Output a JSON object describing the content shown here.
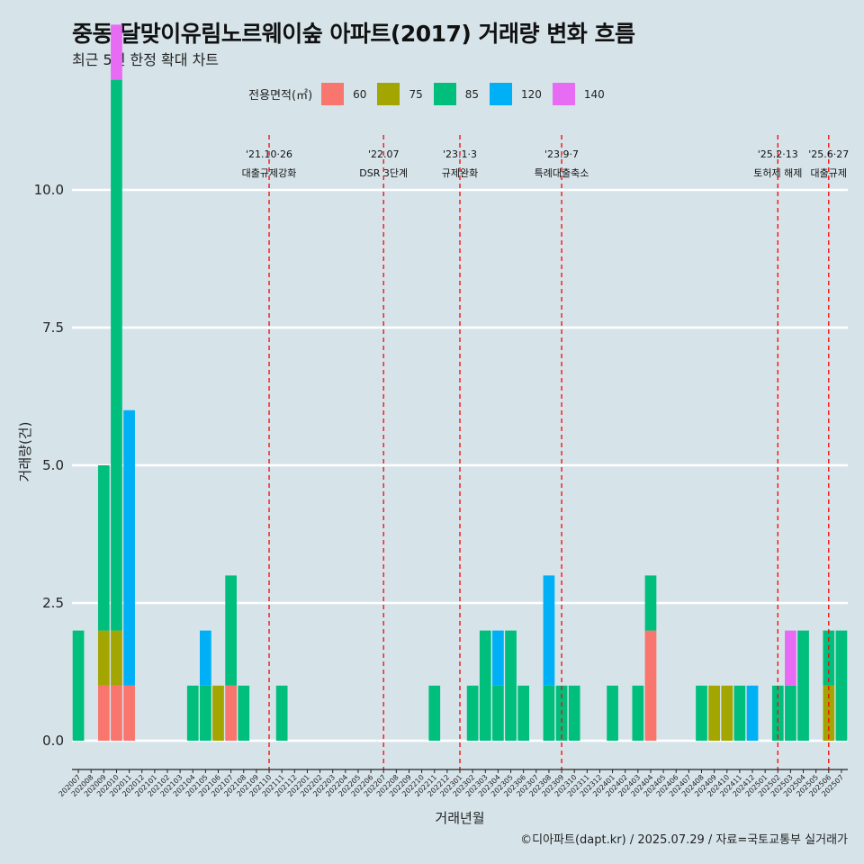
{
  "title": "중동 달맞이유림노르웨이숲 아파트(2017) 거래량 변화 흐름",
  "subtitle": "최근 5년 한정 확대 차트",
  "caption": "©디아파트(dapt.kr) / 2025.07.29 / 자료=국토교통부 실거래가",
  "legend": {
    "title": "전용면적(㎡)",
    "items": [
      {
        "label": "60",
        "color": "#f8766d"
      },
      {
        "label": "75",
        "color": "#a3a500"
      },
      {
        "label": "85",
        "color": "#00bf7d"
      },
      {
        "label": "120",
        "color": "#00b0f6"
      },
      {
        "label": "140",
        "color": "#e76bf3"
      }
    ]
  },
  "chart_data": {
    "type": "bar",
    "xlabel": "거래년월",
    "ylabel": "거래량(건)",
    "ylim": [
      0,
      10
    ],
    "yticks": [
      "0.0",
      "2.5",
      "5.0",
      "7.5",
      "10.0"
    ],
    "categories": [
      "202007",
      "202008",
      "202009",
      "202010",
      "202011",
      "202012",
      "202101",
      "202102",
      "202103",
      "202104",
      "202105",
      "202106",
      "202107",
      "202108",
      "202109",
      "202110",
      "202111",
      "202112",
      "202201",
      "202202",
      "202203",
      "202204",
      "202205",
      "202206",
      "202207",
      "202208",
      "202209",
      "202210",
      "202211",
      "202212",
      "202301",
      "202302",
      "202303",
      "202304",
      "202305",
      "202306",
      "202307",
      "202308",
      "202309",
      "202310",
      "202311",
      "202312",
      "202401",
      "202402",
      "202403",
      "202404",
      "202405",
      "202406",
      "202407",
      "202408",
      "202409",
      "202410",
      "202411",
      "202412",
      "202501",
      "202502",
      "202503",
      "202504",
      "202505",
      "202506",
      "202507"
    ],
    "series": [
      {
        "name": "60",
        "values": [
          0,
          0,
          1,
          1,
          1,
          0,
          0,
          0,
          0,
          0,
          0,
          0,
          1,
          0,
          0,
          0,
          0,
          0,
          0,
          0,
          0,
          0,
          0,
          0,
          0,
          0,
          0,
          0,
          0,
          0,
          0,
          0,
          0,
          0,
          0,
          0,
          0,
          0,
          0,
          0,
          0,
          0,
          0,
          0,
          0,
          2,
          0,
          0,
          0,
          0,
          0,
          0,
          0,
          0,
          0,
          0,
          0,
          0,
          0,
          0,
          0
        ]
      },
      {
        "name": "75",
        "values": [
          0,
          0,
          1,
          1,
          0,
          0,
          0,
          0,
          0,
          0,
          0,
          1,
          0,
          0,
          0,
          0,
          0,
          0,
          0,
          0,
          0,
          0,
          0,
          0,
          0,
          0,
          0,
          0,
          0,
          0,
          0,
          0,
          0,
          0,
          0,
          0,
          0,
          0,
          0,
          0,
          0,
          0,
          0,
          0,
          0,
          0,
          0,
          0,
          0,
          0,
          1,
          1,
          0,
          0,
          0,
          0,
          0,
          0,
          0,
          1,
          0
        ]
      },
      {
        "name": "85",
        "values": [
          2,
          0,
          3,
          10,
          0,
          0,
          0,
          0,
          0,
          1,
          1,
          0,
          2,
          1,
          0,
          0,
          1,
          0,
          0,
          0,
          0,
          0,
          0,
          0,
          0,
          0,
          0,
          0,
          1,
          0,
          0,
          1,
          2,
          1,
          2,
          1,
          0,
          1,
          1,
          1,
          0,
          0,
          1,
          0,
          1,
          1,
          0,
          0,
          0,
          1,
          0,
          0,
          1,
          0,
          0,
          1,
          1,
          2,
          0,
          1,
          2
        ]
      },
      {
        "name": "120",
        "values": [
          0,
          0,
          0,
          0,
          5,
          0,
          0,
          0,
          0,
          0,
          1,
          0,
          0,
          0,
          0,
          0,
          0,
          0,
          0,
          0,
          0,
          0,
          0,
          0,
          0,
          0,
          0,
          0,
          0,
          0,
          0,
          0,
          0,
          1,
          0,
          0,
          0,
          2,
          0,
          0,
          0,
          0,
          0,
          0,
          0,
          0,
          0,
          0,
          0,
          0,
          0,
          0,
          0,
          1,
          0,
          0,
          0,
          0,
          0,
          0,
          0
        ]
      },
      {
        "name": "140",
        "values": [
          0,
          0,
          0,
          1,
          0,
          0,
          0,
          0,
          0,
          0,
          0,
          0,
          0,
          0,
          0,
          0,
          0,
          0,
          0,
          0,
          0,
          0,
          0,
          0,
          0,
          0,
          0,
          0,
          0,
          0,
          0,
          0,
          0,
          0,
          0,
          0,
          0,
          0,
          0,
          0,
          0,
          0,
          0,
          0,
          0,
          0,
          0,
          0,
          0,
          0,
          0,
          0,
          0,
          0,
          0,
          0,
          1,
          0,
          0,
          0,
          0
        ]
      }
    ],
    "annotations": [
      {
        "date": "'21.10·26",
        "label": "대출규제강화",
        "x": "202110"
      },
      {
        "date": "'22.07",
        "label": "DSR 3단계",
        "x": "202207"
      },
      {
        "date": "'23.1·3",
        "label": "규제완화",
        "x": "202301"
      },
      {
        "date": "'23.9·7",
        "label": "특례대출축소",
        "x": "202309"
      },
      {
        "date": "'25.2·13",
        "label": "토허제 해제",
        "x": "202502"
      },
      {
        "date": "'25.6·27",
        "label": "대출규제",
        "x": "202506"
      }
    ],
    "grid": true,
    "legend_position": "top"
  }
}
